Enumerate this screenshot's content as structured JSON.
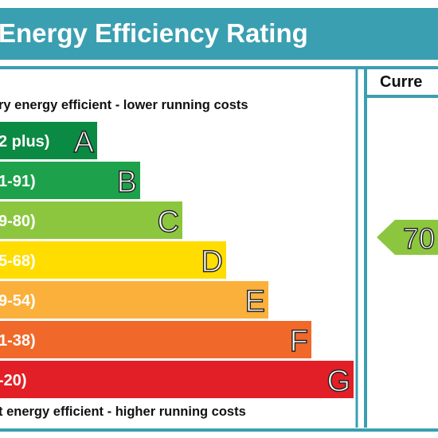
{
  "header": {
    "title": "Energy Efficiency Rating"
  },
  "scale": {
    "top_label": "ry energy efficient - lower running costs",
    "bottom_label": "t energy efficient - higher running costs",
    "bands": [
      {
        "range": "2 plus)",
        "letter": "A"
      },
      {
        "range": "1-91)",
        "letter": "B"
      },
      {
        "range": "9-80)",
        "letter": "C"
      },
      {
        "range": "5-68)",
        "letter": "D"
      },
      {
        "range": "9-54)",
        "letter": "E"
      },
      {
        "range": "1-38)",
        "letter": "F"
      },
      {
        "range": "-20)",
        "letter": "G"
      }
    ]
  },
  "current": {
    "header": "Curre",
    "value": 70
  }
}
